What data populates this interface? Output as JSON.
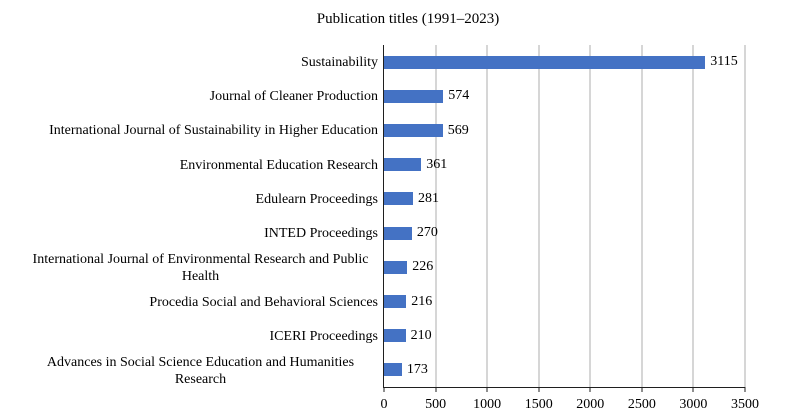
{
  "colors": {
    "bar": "#4472C4",
    "gridline": "#ADADAD",
    "axis": "#1F1F1F",
    "text": "#000000",
    "background": "#FFFFFF"
  },
  "chart_data": {
    "type": "bar",
    "orientation": "horizontal",
    "title": "Publication titles (1991–2023)",
    "categories": [
      "Sustainability",
      "Journal of Cleaner Production",
      "International Journal of Sustainability in Higher Education",
      "Environmental Education Research",
      "Edulearn Proceedings",
      "INTED Proceedings",
      "International Journal of Environmental Research and Public Health",
      "Procedia Social and Behavioral Sciences",
      "ICERI Proceedings",
      "Advances in Social Science Education and Humanities Research"
    ],
    "values": [
      3115,
      574,
      569,
      361,
      281,
      270,
      226,
      216,
      210,
      173
    ],
    "xlim": [
      0,
      3500
    ],
    "xticks": [
      0,
      500,
      1000,
      1500,
      2000,
      2500,
      3000,
      3500
    ],
    "grid": true,
    "show_data_labels": true,
    "legend": "none"
  }
}
